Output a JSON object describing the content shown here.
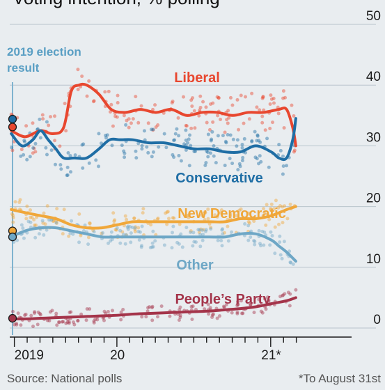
{
  "title": "Voting intention, % polling",
  "source": "Source: National polls",
  "footnote": "*To August 31st",
  "colors": {
    "liberal": "#e8472f",
    "conservative": "#1f6ea5",
    "ndp": "#f0a73a",
    "other": "#6ea7c6",
    "ppc": "#a4344a",
    "grid": "#b9c4cc",
    "background": "#e9edf0"
  },
  "chart_data": {
    "type": "line",
    "ylim": [
      0,
      50
    ],
    "yticks": [
      "0",
      "10",
      "20",
      "30",
      "40",
      "50"
    ],
    "xticks": [
      {
        "label": "2019",
        "t": 2019.83
      },
      {
        "label": "20",
        "t": 2020.5
      },
      {
        "label": "21*",
        "t": 2021.5
      }
    ],
    "xlim": [
      2019.8,
      2022.0
    ],
    "annotation": "2019 election result",
    "series": [
      {
        "name": "Liberal",
        "key": "liberal",
        "election_result": 33.1,
        "t": [
          2019.81,
          2019.9,
          2020.0,
          2020.08,
          2020.15,
          2020.2,
          2020.25,
          2020.3,
          2020.38,
          2020.46,
          2020.55,
          2020.65,
          2020.75,
          2020.85,
          2020.95,
          2021.05,
          2021.15,
          2021.25,
          2021.35,
          2021.45,
          2021.55,
          2021.6,
          2021.64,
          2021.66
        ],
        "values": [
          32.5,
          31.5,
          32.5,
          32,
          33,
          39,
          40,
          40,
          38.5,
          36,
          35.5,
          36,
          35.5,
          36,
          35,
          35.5,
          35.5,
          35,
          35.5,
          35.5,
          36,
          36,
          33,
          30
        ]
      },
      {
        "name": "Conservative",
        "key": "conservative",
        "election_result": 34.4,
        "t": [
          2019.81,
          2019.88,
          2019.95,
          2020.0,
          2020.05,
          2020.1,
          2020.15,
          2020.22,
          2020.3,
          2020.38,
          2020.45,
          2020.52,
          2020.6,
          2020.7,
          2020.8,
          2020.9,
          2021.0,
          2021.1,
          2021.2,
          2021.3,
          2021.4,
          2021.5,
          2021.55,
          2021.6,
          2021.64,
          2021.66
        ],
        "values": [
          32,
          30,
          31,
          32.5,
          31,
          29.5,
          28,
          28,
          28,
          29.5,
          31,
          31,
          31,
          30.5,
          30.5,
          30,
          29.5,
          29.5,
          29,
          29,
          30,
          29,
          28,
          28,
          31,
          34.5
        ]
      },
      {
        "name": "New Democratic",
        "key": "ndp",
        "election_result": 16.0,
        "t": [
          2019.81,
          2019.9,
          2020.0,
          2020.1,
          2020.2,
          2020.3,
          2020.4,
          2020.5,
          2020.6,
          2020.7,
          2020.8,
          2020.9,
          2021.0,
          2021.1,
          2021.2,
          2021.3,
          2021.4,
          2021.5,
          2021.6,
          2021.66
        ],
        "values": [
          19.5,
          19,
          18.5,
          18,
          17,
          16.5,
          16.5,
          17,
          17.5,
          17.5,
          17.5,
          17.5,
          17.5,
          17.5,
          17.5,
          18,
          18,
          18.5,
          19.5,
          20
        ]
      },
      {
        "name": "Other",
        "key": "other",
        "election_result": 15.0,
        "t": [
          2019.81,
          2019.9,
          2020.0,
          2020.1,
          2020.2,
          2020.3,
          2020.4,
          2020.5,
          2020.6,
          2020.7,
          2020.8,
          2020.9,
          2021.0,
          2021.1,
          2021.2,
          2021.3,
          2021.4,
          2021.5,
          2021.55,
          2021.6,
          2021.66
        ],
        "values": [
          15,
          16,
          16.5,
          16.5,
          16,
          15.5,
          15,
          15,
          15,
          15,
          15,
          15,
          15,
          15,
          15,
          15.5,
          15.5,
          14.5,
          13.5,
          12.5,
          11
        ]
      },
      {
        "name": "People’s Party",
        "key": "ppc",
        "election_result": 1.6,
        "t": [
          2019.81,
          2019.9,
          2020.0,
          2020.1,
          2020.2,
          2020.3,
          2020.4,
          2020.5,
          2020.6,
          2020.7,
          2020.8,
          2020.9,
          2021.0,
          2021.1,
          2021.2,
          2021.3,
          2021.4,
          2021.5,
          2021.6,
          2021.66
        ],
        "values": [
          1.5,
          1.5,
          1.6,
          1.7,
          1.8,
          1.9,
          2,
          2.1,
          2.3,
          2.4,
          2.5,
          2.6,
          2.7,
          2.8,
          3,
          3.2,
          3.5,
          4,
          4.5,
          5
        ]
      }
    ]
  }
}
